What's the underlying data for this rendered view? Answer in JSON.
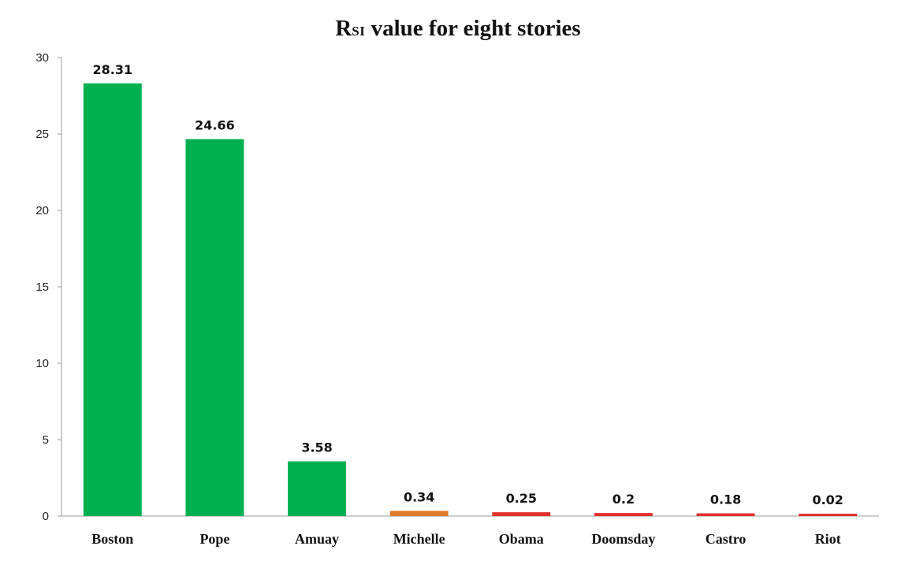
{
  "chart_data": {
    "type": "bar",
    "title_main": "R",
    "title_sub": "SI",
    "title_rest": " value for eight stories",
    "categories": [
      "Boston",
      "Pope",
      "Amuay",
      "Michelle",
      "Obama",
      "Doomsday",
      "Castro",
      "Riot"
    ],
    "values": [
      28.31,
      24.66,
      3.58,
      0.34,
      0.25,
      0.2,
      0.18,
      0.02
    ],
    "data_labels": [
      "28.31",
      "24.66",
      "3.58",
      "0.34",
      "0.25",
      "0.2",
      "0.18",
      "0.02"
    ],
    "colors": [
      "#00b050",
      "#00b050",
      "#00b050",
      "#e07b2a",
      "#e0302a",
      "#e0302a",
      "#e0302a",
      "#e0302a"
    ],
    "yticks": [
      "0",
      "5",
      "10",
      "15",
      "20",
      "25",
      "30"
    ],
    "ylim": [
      0,
      30
    ],
    "grid": false,
    "legend": "none"
  }
}
